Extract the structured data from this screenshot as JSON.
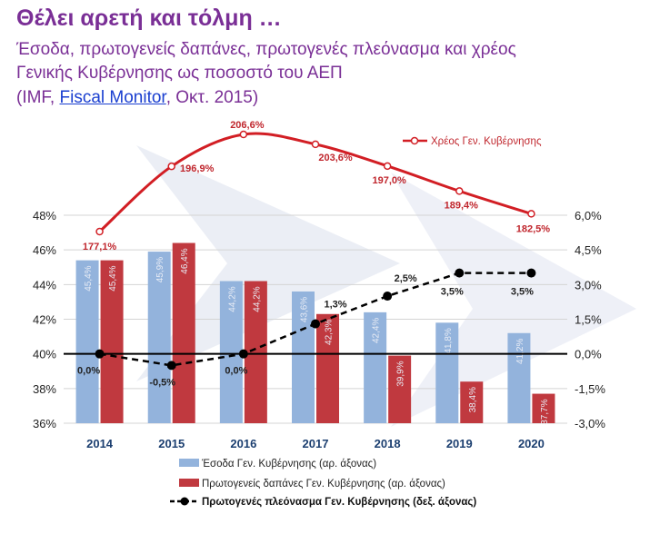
{
  "header": {
    "title": "Θέλει αρετή και τόλμη …",
    "subtitle_line1": "Έσοδα, πρωτογενείς δαπάνες, πρωτογενές πλεόνασμα και χρέος",
    "subtitle_line2": "Γενικής Κυβέρνησης ως ποσοστό του ΑΕΠ",
    "source_prefix": "(IMF, ",
    "source_link": "Fiscal Monitor",
    "source_suffix": ", Οκτ. 2015)"
  },
  "colors": {
    "revenue": "#93b3dc",
    "expenditure": "#c0393f",
    "debt": "#d21e24",
    "surplus": "#000000",
    "title": "#7a2f96"
  },
  "chart_data": {
    "type": "bar",
    "categories": [
      "2014",
      "2015",
      "2016",
      "2017",
      "2018",
      "2019",
      "2020"
    ],
    "series": [
      {
        "name": "Έσοδα Γεν. Κυβέρνησης (αρ. άξονας)",
        "type": "bar",
        "axis": "left",
        "values": [
          45.4,
          45.9,
          44.2,
          43.6,
          42.4,
          41.8,
          41.2
        ],
        "labels": [
          "45,4%",
          "45,9%",
          "44,2%",
          "43,6%",
          "42,4%",
          "41,8%",
          "41,2%"
        ]
      },
      {
        "name": "Πρωτογενείς δαπάνες Γεν. Κυβέρνησης (αρ. άξονας)",
        "type": "bar",
        "axis": "left",
        "values": [
          45.4,
          46.4,
          44.2,
          42.3,
          39.9,
          38.4,
          37.7
        ],
        "labels": [
          "45,4%",
          "46,4%",
          "44,2%",
          "42,3%",
          "39,9%",
          "38,4%",
          "37,7%"
        ]
      },
      {
        "name": "Πρωτογενές πλεόνασμα Γεν. Κυβέρνησης (δεξ. άξονας)",
        "type": "line",
        "axis": "right",
        "values": [
          0.0,
          -0.5,
          0.0,
          1.3,
          2.5,
          3.5,
          3.5
        ],
        "labels": [
          "0,0%",
          "-0,5%",
          "0,0%",
          "1,3%",
          "2,5%",
          "3,5%",
          "3,5%"
        ]
      },
      {
        "name": "Χρέος Γεν. Κυβέρνησης",
        "type": "line",
        "values": [
          177.1,
          196.9,
          206.6,
          203.6,
          197.0,
          189.4,
          182.5
        ],
        "labels": [
          "177,1%",
          "196,9%",
          "206,6%",
          "203,6%",
          "197,0%",
          "189,4%",
          "182,5%"
        ]
      }
    ],
    "ylim_left": [
      36,
      48
    ],
    "yticks_left": [
      "36%",
      "38%",
      "40%",
      "42%",
      "44%",
      "46%",
      "48%"
    ],
    "ylim_right": [
      -3.0,
      6.0
    ],
    "yticks_right": [
      "-3,0%",
      "-1,5%",
      "0,0%",
      "1,5%",
      "3,0%",
      "4,5%",
      "6,0%"
    ],
    "grid": true
  }
}
